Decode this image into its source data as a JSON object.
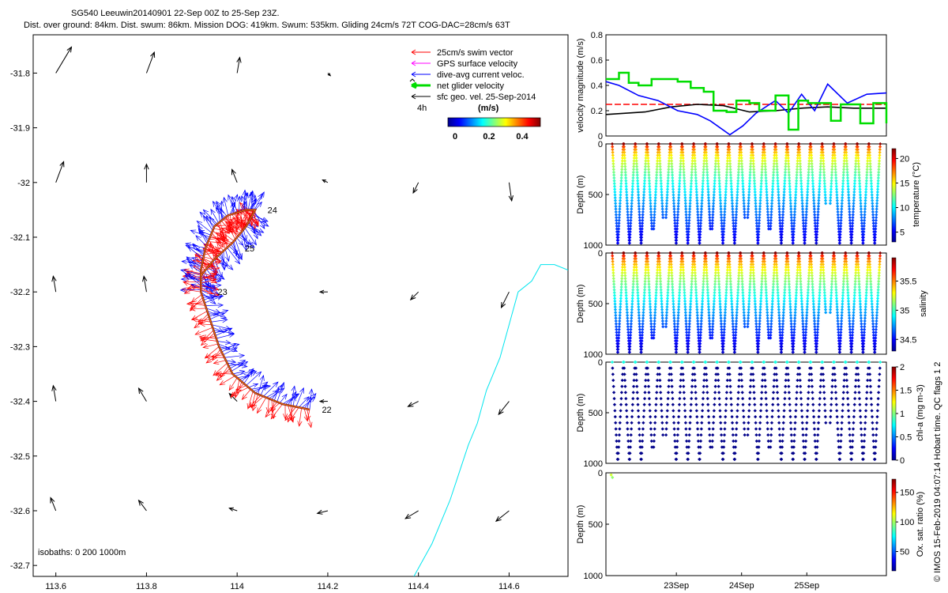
{
  "title_line1": "SG540 Leeuwin20140901 22-Sep 00Z to 25-Sep 23Z.",
  "title_line2": "Dist. over ground: 84km. Dist. swum: 86km. Mission DOG: 419km. Swum: 535km. Gliding 24cm/s 72T COG-DAC=28cm/s 63T",
  "copyright": "© IMOS 15-Feb-2019 04:07:14 Hobart time. QC flags 1  2",
  "colors": {
    "swim": "#ff0000",
    "gps": "#ff00ff",
    "dac": "#0000ff",
    "net": "#00dd00",
    "sfc": "#000000",
    "coast": "#00e5ee",
    "track": "#8b1a1a"
  },
  "chart_data": [
    {
      "type": "scatter",
      "name": "map",
      "xlim": [
        113.55,
        114.73
      ],
      "ylim": [
        -32.72,
        -31.73
      ],
      "xticks": [
        "113.6",
        "113.8",
        "114",
        "114.2",
        "114.4",
        "114.6"
      ],
      "yticks": [
        "-31.8",
        "-31.9",
        "-32",
        "-32.1",
        "-32.2",
        "-32.3",
        "-32.4",
        "-32.5",
        "-32.6",
        "-32.7"
      ],
      "legend": {
        "placement": "top-right",
        "items": [
          {
            "label": "25cm/s swim vector",
            "color": "#ff0000"
          },
          {
            "label": "GPS surface velocity",
            "color": "#ff00ff"
          },
          {
            "label": "dive-avg current veloc.",
            "color": "#0000ff"
          },
          {
            "label": "net glider velocity",
            "color": "#00dd00"
          },
          {
            "label": "sfc geo. vel. 25-Sep-2014",
            "color": "#000000"
          }
        ],
        "scale_label": "4h"
      },
      "colorbar": {
        "unit": "(m/s)",
        "ticks": [
          "0",
          "0.2",
          "0.4"
        ],
        "range": [
          0,
          0.5
        ]
      },
      "isobaths_label": "isobaths: 0   200  1000m",
      "day_labels": [
        {
          "text": "22",
          "x": 114.18,
          "y": -32.415
        },
        {
          "text": "23",
          "x": 113.95,
          "y": -32.2
        },
        {
          "text": "24",
          "x": 114.06,
          "y": -32.05
        },
        {
          "text": "25",
          "x": 114.01,
          "y": -32.12
        }
      ],
      "track": [
        [
          114.16,
          -32.415
        ],
        [
          114.1,
          -32.405
        ],
        [
          114.04,
          -32.385
        ],
        [
          113.99,
          -32.35
        ],
        [
          113.96,
          -32.3
        ],
        [
          113.94,
          -32.25
        ],
        [
          113.92,
          -32.2
        ],
        [
          113.92,
          -32.17
        ],
        [
          113.95,
          -32.14
        ],
        [
          113.99,
          -32.11
        ],
        [
          114.02,
          -32.08
        ],
        [
          114.04,
          -32.05
        ],
        [
          114.02,
          -32.05
        ],
        [
          113.98,
          -32.06
        ],
        [
          113.95,
          -32.08
        ],
        [
          113.93,
          -32.12
        ],
        [
          113.92,
          -32.16
        ],
        [
          113.92,
          -32.2
        ]
      ],
      "geostrophic_vectors": [
        {
          "x": 113.6,
          "y": -31.8,
          "u": 0.06,
          "v": 0.1
        },
        {
          "x": 113.8,
          "y": -31.8,
          "u": 0.03,
          "v": 0.08
        },
        {
          "x": 114.0,
          "y": -31.8,
          "u": 0.01,
          "v": 0.06
        },
        {
          "x": 114.2,
          "y": -31.8,
          "u": 0.01,
          "v": -0.01
        },
        {
          "x": 113.6,
          "y": -32.0,
          "u": 0.03,
          "v": 0.08
        },
        {
          "x": 113.8,
          "y": -32.0,
          "u": 0.0,
          "v": 0.07
        },
        {
          "x": 114.0,
          "y": -32.0,
          "u": -0.02,
          "v": 0.05
        },
        {
          "x": 114.2,
          "y": -32.0,
          "u": -0.02,
          "v": 0.01
        },
        {
          "x": 114.4,
          "y": -32.0,
          "u": -0.02,
          "v": -0.04
        },
        {
          "x": 114.6,
          "y": -32.0,
          "u": 0.01,
          "v": -0.07
        },
        {
          "x": 113.6,
          "y": -32.2,
          "u": -0.01,
          "v": 0.06
        },
        {
          "x": 113.8,
          "y": -32.2,
          "u": -0.01,
          "v": 0.06
        },
        {
          "x": 114.2,
          "y": -32.2,
          "u": -0.03,
          "v": 0.0
        },
        {
          "x": 114.4,
          "y": -32.2,
          "u": -0.03,
          "v": -0.03
        },
        {
          "x": 114.6,
          "y": -32.2,
          "u": -0.03,
          "v": -0.06
        },
        {
          "x": 113.6,
          "y": -32.4,
          "u": -0.01,
          "v": 0.06
        },
        {
          "x": 113.8,
          "y": -32.4,
          "u": -0.03,
          "v": 0.05
        },
        {
          "x": 114.0,
          "y": -32.4,
          "u": -0.03,
          "v": 0.03
        },
        {
          "x": 114.2,
          "y": -32.4,
          "u": -0.03,
          "v": 0.0
        },
        {
          "x": 114.4,
          "y": -32.4,
          "u": -0.04,
          "v": -0.02
        },
        {
          "x": 114.6,
          "y": -32.4,
          "u": -0.04,
          "v": -0.05
        },
        {
          "x": 113.6,
          "y": -32.6,
          "u": -0.02,
          "v": 0.05
        },
        {
          "x": 113.8,
          "y": -32.6,
          "u": -0.03,
          "v": 0.04
        },
        {
          "x": 114.0,
          "y": -32.6,
          "u": -0.03,
          "v": 0.01
        },
        {
          "x": 114.2,
          "y": -32.6,
          "u": -0.04,
          "v": -0.01
        },
        {
          "x": 114.4,
          "y": -32.6,
          "u": -0.05,
          "v": -0.03
        },
        {
          "x": 114.6,
          "y": -32.6,
          "u": -0.05,
          "v": -0.04
        }
      ],
      "coastline": [
        [
          114.73,
          -32.16
        ],
        [
          114.7,
          -32.15
        ],
        [
          114.67,
          -32.15
        ],
        [
          114.65,
          -32.18
        ],
        [
          114.62,
          -32.2
        ],
        [
          114.6,
          -32.26
        ],
        [
          114.58,
          -32.32
        ],
        [
          114.55,
          -32.38
        ],
        [
          114.53,
          -32.44
        ],
        [
          114.51,
          -32.48
        ],
        [
          114.49,
          -32.53
        ],
        [
          114.47,
          -32.58
        ],
        [
          114.45,
          -32.62
        ],
        [
          114.43,
          -32.66
        ],
        [
          114.41,
          -32.69
        ],
        [
          114.39,
          -32.72
        ]
      ]
    },
    {
      "type": "line",
      "name": "velocity",
      "ylabel": "velocity magnitude (m/s)",
      "xlim": [
        22,
        26.3
      ],
      "ylim": [
        0,
        0.8
      ],
      "yticks": [
        "0",
        "0.2",
        "0.4",
        "0.6",
        "0.8"
      ],
      "series": [
        {
          "color": "#ff0000",
          "x": [
            22,
            26.3
          ],
          "y": [
            0.25,
            0.25
          ]
        },
        {
          "color": "#000000",
          "x": [
            22,
            22.3,
            22.6,
            23.0,
            23.4,
            23.8,
            24.2,
            24.6,
            25.0,
            25.4,
            25.8,
            26.3
          ],
          "y": [
            0.17,
            0.18,
            0.19,
            0.23,
            0.25,
            0.24,
            0.19,
            0.2,
            0.22,
            0.23,
            0.22,
            0.22
          ]
        },
        {
          "color": "#0000ff",
          "x": [
            22,
            22.2,
            22.5,
            22.8,
            23.1,
            23.4,
            23.6,
            23.9,
            24.1,
            24.3,
            24.6,
            24.8,
            25.0,
            25.2,
            25.4,
            25.7,
            26.0,
            26.3
          ],
          "y": [
            0.43,
            0.4,
            0.32,
            0.28,
            0.2,
            0.17,
            0.12,
            0.01,
            0.08,
            0.18,
            0.28,
            0.18,
            0.33,
            0.2,
            0.41,
            0.26,
            0.33,
            0.34
          ]
        },
        {
          "color": "#00dd00",
          "step": true,
          "x": [
            22,
            22.2,
            22.35,
            22.5,
            22.7,
            22.9,
            23.1,
            23.3,
            23.5,
            23.65,
            23.85,
            24.0,
            24.2,
            24.35,
            24.6,
            24.8,
            24.95,
            25.1,
            25.3,
            25.45,
            25.6,
            25.9,
            26.1,
            26.3
          ],
          "y": [
            0.45,
            0.5,
            0.42,
            0.4,
            0.45,
            0.45,
            0.43,
            0.38,
            0.35,
            0.2,
            0.19,
            0.28,
            0.26,
            0.2,
            0.32,
            0.05,
            0.28,
            0.26,
            0.26,
            0.12,
            0.25,
            0.1,
            0.26,
            0.1
          ]
        }
      ]
    },
    {
      "type": "scatter",
      "name": "temperature",
      "ylabel": "Depth (m)",
      "clabel": "temperature (°C)",
      "yticks": [
        "0",
        "500",
        "1000"
      ],
      "cticks": [
        "5",
        "10",
        "15",
        "20"
      ],
      "crange": [
        3,
        22
      ],
      "colormap": "jet",
      "dives": 23,
      "profile": "temperature"
    },
    {
      "type": "scatter",
      "name": "salinity",
      "ylabel": "Depth (m)",
      "clabel": "salinity",
      "yticks": [
        "0",
        "500",
        "1000"
      ],
      "cticks": [
        "34.5",
        "35",
        "35.5"
      ],
      "crange": [
        34.3,
        35.9
      ],
      "colormap": "jet",
      "dives": 23,
      "profile": "salinity"
    },
    {
      "type": "scatter",
      "name": "chla",
      "ylabel": "Depth (m)",
      "clabel": "chl-a (mg m-3)",
      "yticks": [
        "0",
        "500",
        "1000"
      ],
      "cticks": [
        "0",
        "0.5",
        "1",
        "1.5",
        "2"
      ],
      "crange": [
        0,
        2
      ],
      "colormap": "jet",
      "dives": 23,
      "profile": "chla"
    },
    {
      "type": "scatter",
      "name": "oxygen",
      "ylabel": "Depth (m)",
      "clabel": "Ox. sat. ratio (%)",
      "yticks": [
        "0",
        "500",
        "1000"
      ],
      "cticks": [
        "50",
        "100",
        "150"
      ],
      "crange": [
        20,
        175
      ],
      "colormap": "jet",
      "xticks": [
        "23Sep",
        "24Sep",
        "25Sep"
      ],
      "points": [
        [
          22.08,
          20,
          110
        ],
        [
          22.1,
          45,
          100
        ]
      ]
    }
  ]
}
